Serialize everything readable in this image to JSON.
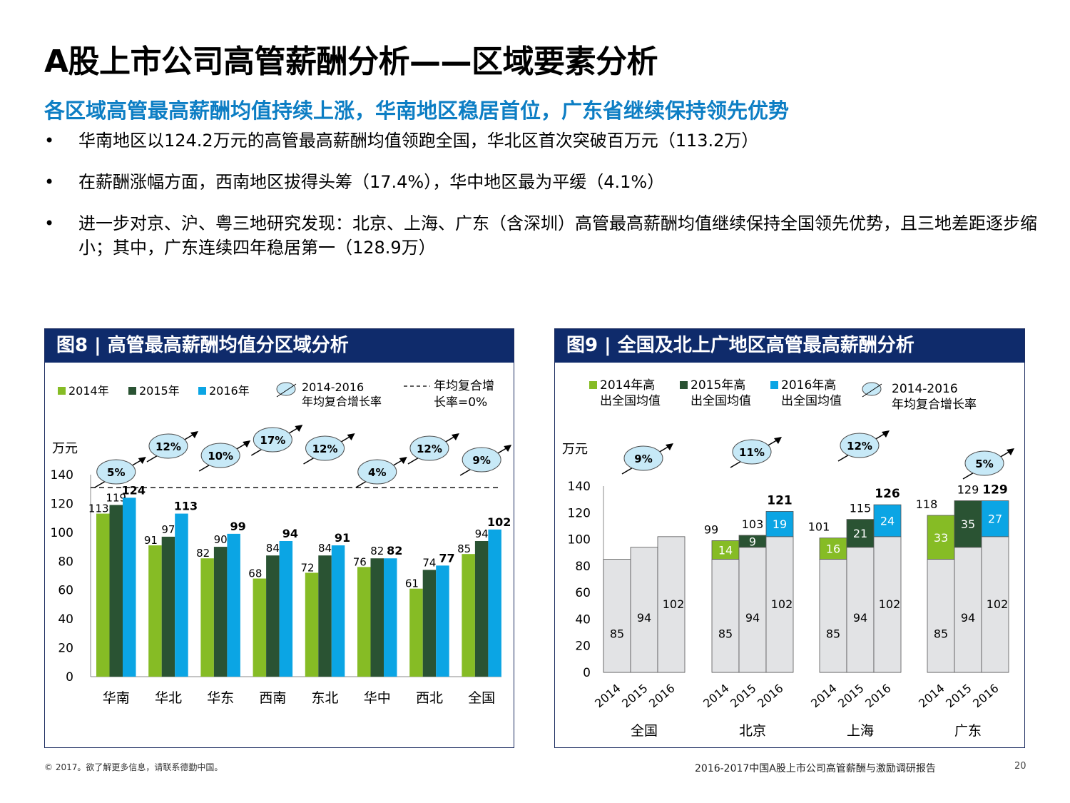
{
  "header": {
    "title": "A股上市公司高管薪酬分析——区域要素分析",
    "subtitle": "各区域高管最高薪酬均值持续上涨，华南地区稳居首位，广东省继续保持领先优势"
  },
  "bullets": [
    "华南地区以124.2万元的高管最高薪酬均值领跑全国，华北区首次突破百万元（113.2万）",
    "在薪酬涨幅方面，西南地区拔得头筹（17.4%），华中地区最为平缓（4.1%）",
    "进一步对京、沪、粤三地研究发现：北京、上海、广东（含深圳）高管最高薪酬均值继续保持全国领先优势，且三地差距逐步缩小；其中，广东连续四年稳居第一（128.9万）"
  ],
  "bullet_symbol": "•",
  "colors": {
    "y2014": "#86bc25",
    "y2015": "#2a5333",
    "y2016": "#0ba5e4",
    "base": "#e2e3e5",
    "header_bg": "#0f2b6b",
    "accent_text": "#0d7ec4",
    "bubble": "#c7e9f7"
  },
  "chart_data": [
    {
      "type": "bar",
      "panel_title": "图8 | 高管最高薪酬均值分区域分析",
      "ylabel": "万元",
      "ylim": [
        0,
        140
      ],
      "yticks": [
        0,
        20,
        40,
        60,
        80,
        100,
        120,
        140
      ],
      "categories": [
        "华南",
        "华北",
        "华东",
        "西南",
        "东北",
        "华中",
        "西北",
        "全国"
      ],
      "series": [
        {
          "name": "2014年",
          "values": [
            113,
            91,
            82,
            68,
            72,
            76,
            61,
            85
          ]
        },
        {
          "name": "2015年",
          "values": [
            119,
            97,
            90,
            84,
            84,
            82,
            74,
            94
          ]
        },
        {
          "name": "2016年",
          "values": [
            124,
            113,
            99,
            94,
            91,
            82,
            77,
            102
          ]
        }
      ],
      "cagr_labels": [
        "5%",
        "12%",
        "10%",
        "17%",
        "12%",
        "4%",
        "12%",
        "9%"
      ],
      "legend_cagr": "2014-2016\n年均复合增长率",
      "legend_line": "年均复合增\n长率=0%",
      "reference_line_value": 131,
      "legend": "top"
    },
    {
      "type": "bar",
      "panel_title": "图9 | 全国及北上广地区高管最高薪酬分析",
      "ylabel": "万元",
      "ylim": [
        0,
        140
      ],
      "yticks": [
        0,
        20,
        40,
        60,
        80,
        100,
        120,
        140
      ],
      "groups": [
        "全国",
        "北京",
        "上海",
        "广东"
      ],
      "years": [
        "2014",
        "2015",
        "2016"
      ],
      "base_values": [
        85,
        94,
        102
      ],
      "excess_values": [
        [
          null,
          null,
          null
        ],
        [
          14,
          9,
          19
        ],
        [
          16,
          21,
          24
        ],
        [
          33,
          35,
          27
        ]
      ],
      "totals": [
        [
          null,
          null,
          null
        ],
        [
          99,
          103,
          121
        ],
        [
          101,
          115,
          126
        ],
        [
          118,
          129,
          129
        ]
      ],
      "cagr_labels": [
        "9%",
        "11%",
        "12%",
        "5%"
      ],
      "legend_series": [
        "2014年高\n出全国均值",
        "2015年高\n出全国均值",
        "2016年高\n出全国均值"
      ],
      "legend_cagr": "2014-2016\n年均复合增长率",
      "legend": "top"
    }
  ],
  "footer": {
    "copyright": "© 2017。欲了解更多信息，请联系德勤中国。",
    "report": "2016-2017中国A股上市公司高管薪酬与激励调研报告",
    "page": "20"
  }
}
